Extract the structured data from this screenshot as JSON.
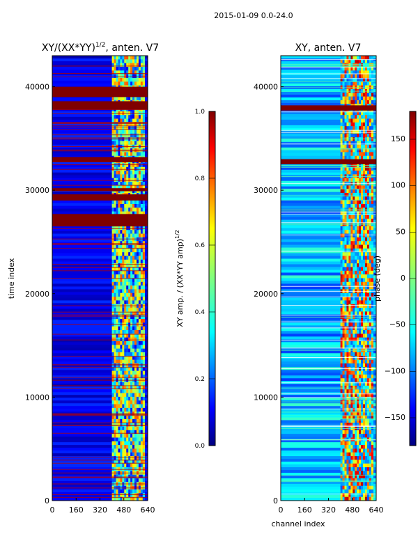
{
  "figure": {
    "suptitle": "2015-01-09 0.0-24.0"
  },
  "chart_data": [
    {
      "type": "heatmap",
      "title": "XY/(XX*YY)^(1/2), anten. V7",
      "title_main": "XY/(XX*YY)",
      "title_exp": "1/2",
      "title_tail": ", anten. V7",
      "xlabel": "",
      "ylabel": "time index",
      "xlim": [
        0,
        640
      ],
      "ylim": [
        0,
        43000
      ],
      "xticks": [
        0,
        160,
        320,
        480,
        640
      ],
      "yticks": [
        0,
        10000,
        20000,
        30000,
        40000
      ],
      "active_channel_range": [
        400,
        620
      ],
      "saturated_bands": [
        [
          26500,
          27700
        ],
        [
          29000,
          29600
        ],
        [
          29900,
          30200
        ],
        [
          32700,
          33200
        ],
        [
          37800,
          38600
        ],
        [
          39000,
          40000
        ]
      ],
      "colorbar": {
        "label": "XY amp. / (XX*YY amp)^(1/2)",
        "label_main": "XY amp. / (XX*YY amp)",
        "label_exp": "1/2",
        "range": [
          0.0,
          1.0
        ],
        "ticks": [
          "0.0",
          "0.2",
          "0.4",
          "0.6",
          "0.8",
          "1.0"
        ],
        "tick_values": [
          0.0,
          0.2,
          0.4,
          0.6,
          0.8,
          1.0
        ]
      }
    },
    {
      "type": "heatmap",
      "title": "XY, anten. V7",
      "xlabel": "channel index",
      "ylabel": "",
      "xlim": [
        0,
        640
      ],
      "ylim": [
        0,
        43000
      ],
      "xticks": [
        0,
        160,
        320,
        480,
        640
      ],
      "yticks": [
        0,
        10000,
        20000,
        30000,
        40000
      ],
      "active_channel_range": [
        400,
        620
      ],
      "saturated_bands": [
        [
          37700,
          38200
        ],
        [
          32500,
          33000
        ]
      ],
      "colorbar": {
        "label": "phase (deg)",
        "range": [
          -180,
          180
        ],
        "ticks": [
          "−150",
          "−100",
          "−50",
          "0",
          "50",
          "100",
          "150"
        ],
        "tick_values": [
          -150,
          -100,
          -50,
          0,
          50,
          100,
          150
        ]
      }
    }
  ],
  "colors": {
    "cmap": [
      "#00007f",
      "#0000ff",
      "#007fff",
      "#00ffff",
      "#7fff7f",
      "#ffff00",
      "#ff7f00",
      "#ff0000",
      "#7f0000"
    ],
    "background": "#ffffff",
    "saturated": "#7f0000"
  }
}
